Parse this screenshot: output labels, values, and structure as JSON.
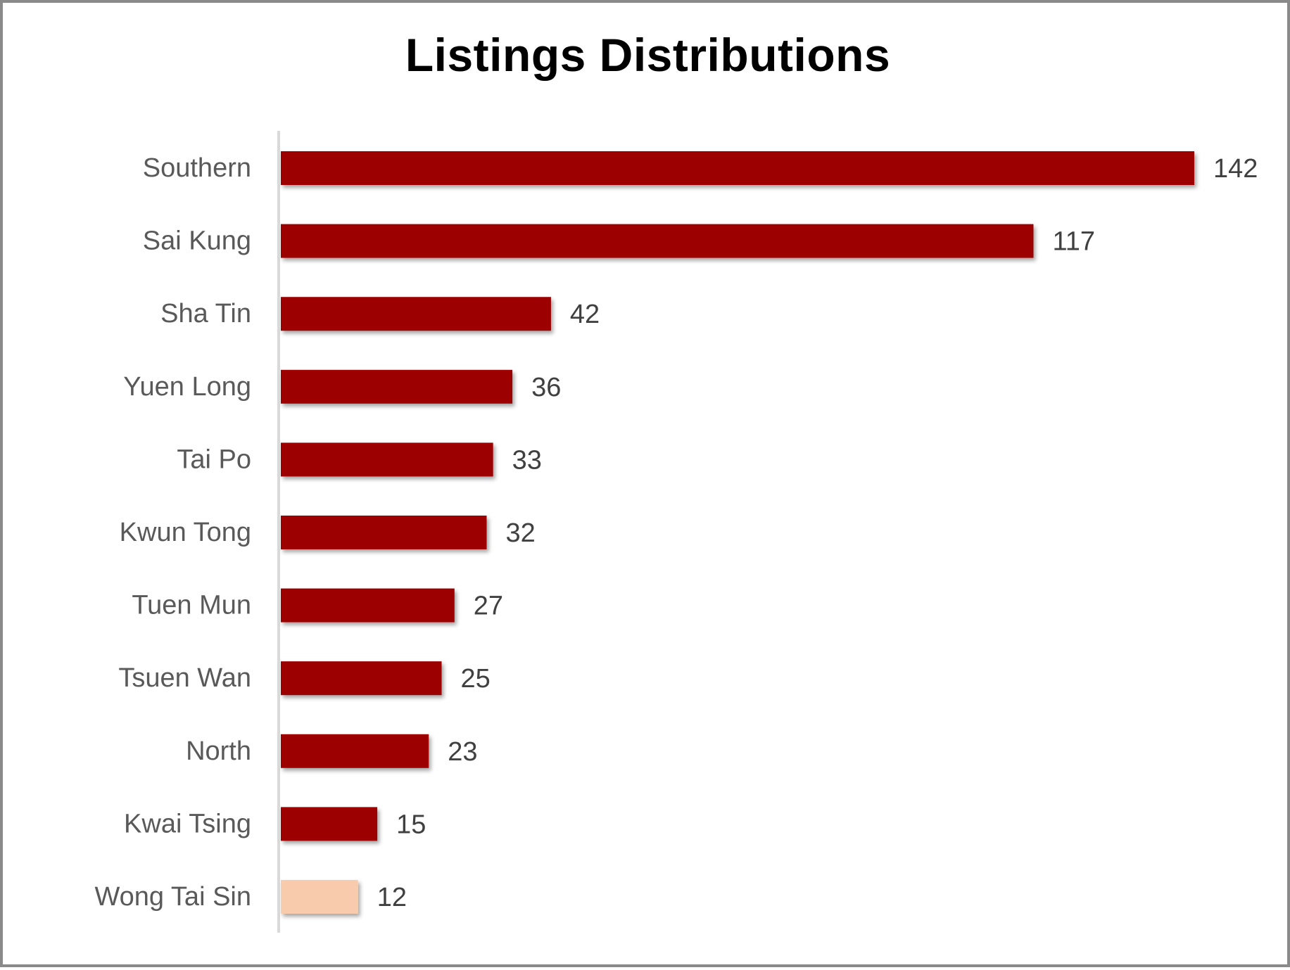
{
  "chart_data": {
    "type": "bar",
    "orientation": "horizontal",
    "title": "Listings Distributions",
    "categories": [
      "Southern",
      "Sai Kung",
      "Sha Tin",
      "Yuen Long",
      "Tai Po",
      "Kwun Tong",
      "Tuen Mun",
      "Tsuen Wan",
      "North",
      "Kwai Tsing",
      "Wong Tai Sin"
    ],
    "values": [
      142,
      117,
      42,
      36,
      33,
      32,
      27,
      25,
      23,
      15,
      12
    ],
    "bar_colors": [
      "#9c0006",
      "#9c0006",
      "#9c0006",
      "#9c0006",
      "#9c0006",
      "#9c0006",
      "#9c0006",
      "#9c0006",
      "#9c0006",
      "#9c0006",
      "#f8cbad"
    ],
    "xlim": [
      0,
      142
    ],
    "data_labels": true,
    "grid": false,
    "legend": "none"
  }
}
